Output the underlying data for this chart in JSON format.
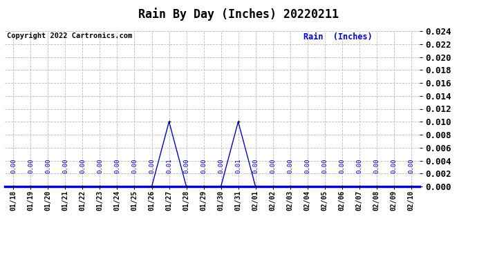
{
  "title": "Rain By Day (Inches) 20220211",
  "copyright": "Copyright 2022 Cartronics.com",
  "legend_label": "Rain  (Inches)",
  "dates": [
    "01/18",
    "01/19",
    "01/20",
    "01/21",
    "01/22",
    "01/23",
    "01/24",
    "01/25",
    "01/26",
    "01/27",
    "01/28",
    "01/29",
    "01/30",
    "01/31",
    "02/01",
    "02/02",
    "02/03",
    "02/04",
    "02/05",
    "02/06",
    "02/07",
    "02/08",
    "02/09",
    "02/10"
  ],
  "values": [
    0.0,
    0.0,
    0.0,
    0.0,
    0.0,
    0.0,
    0.0,
    0.0,
    0.0,
    0.01,
    0.0,
    0.0,
    0.0,
    0.01,
    0.0,
    0.0,
    0.0,
    0.0,
    0.0,
    0.0,
    0.0,
    0.0,
    0.0,
    0.0
  ],
  "line_color": "#0000cc",
  "text_color_blue": "#0000cc",
  "text_color_black": "#000000",
  "bg_color": "#ffffff",
  "grid_color": "#bbbbbb",
  "ylim": [
    0.0,
    0.024
  ],
  "yticks": [
    0.0,
    0.002,
    0.004,
    0.006,
    0.008,
    0.01,
    0.012,
    0.014,
    0.016,
    0.018,
    0.02,
    0.022,
    0.024
  ],
  "title_fontsize": 12,
  "copyright_fontsize": 7.5,
  "legend_fontsize": 8.5,
  "tick_fontsize": 7,
  "annot_fontsize": 6.5,
  "ytick_fontsize": 9
}
